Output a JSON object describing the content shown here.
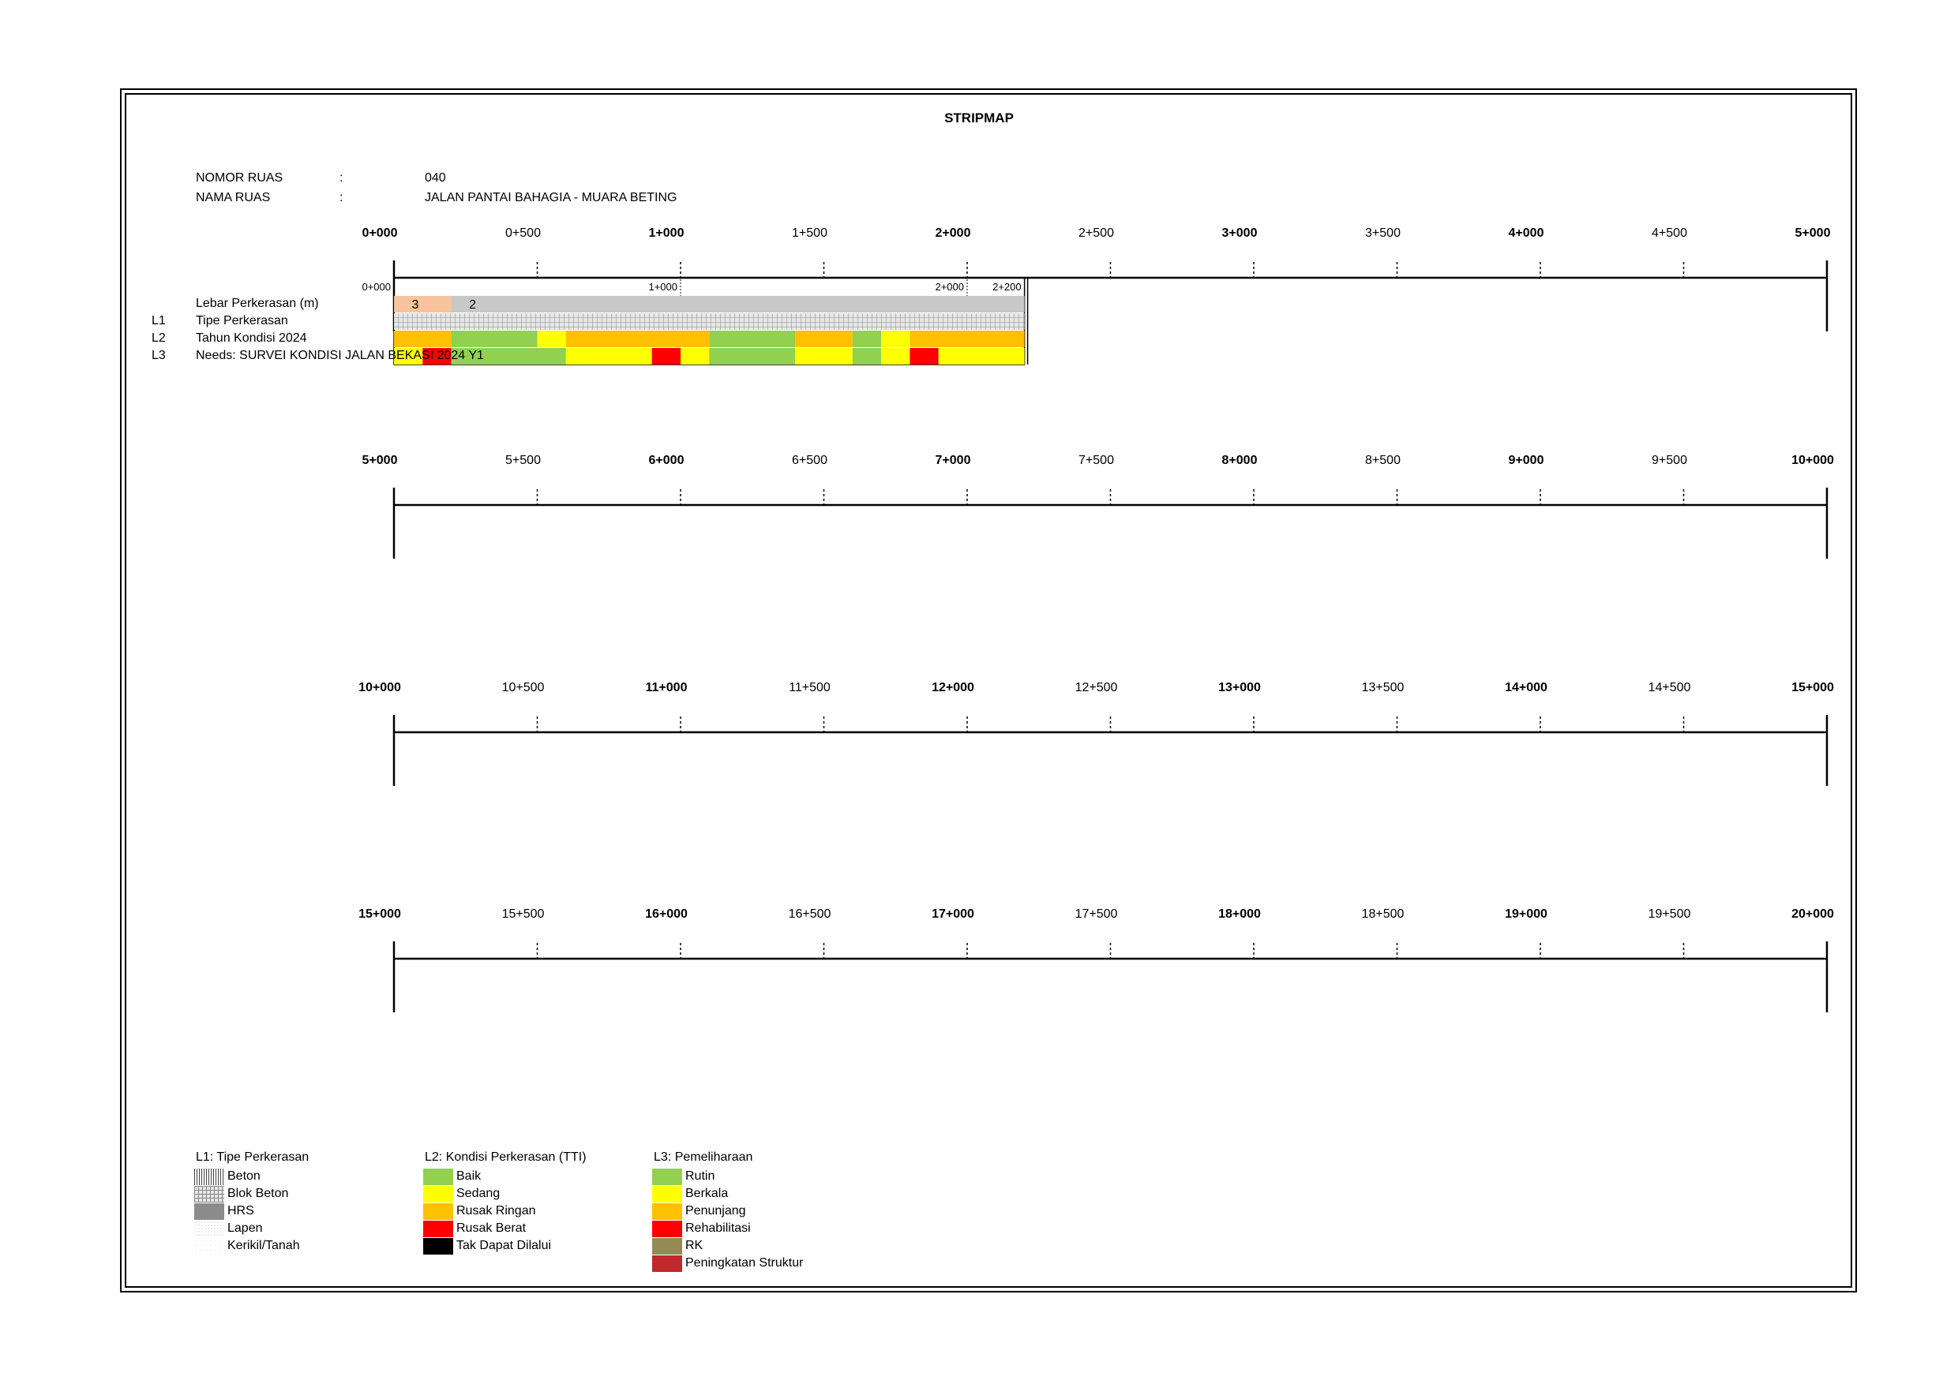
{
  "title": "STRIPMAP",
  "header": {
    "nomor_label": "NOMOR RUAS",
    "nama_label": "NAMA RUAS",
    "colon": ":",
    "nomor_value": "040",
    "nama_value": "JALAN PANTAI BAHAGIA - MUARA BETING"
  },
  "scales": [
    {
      "ticks": [
        "0+000",
        "0+500",
        "1+000",
        "1+500",
        "2+000",
        "2+500",
        "3+000",
        "3+500",
        "4+000",
        "4+500",
        "5+000"
      ]
    },
    {
      "ticks": [
        "5+000",
        "5+500",
        "6+000",
        "6+500",
        "7+000",
        "7+500",
        "8+000",
        "8+500",
        "9+000",
        "9+500",
        "10+000"
      ]
    },
    {
      "ticks": [
        "10+000",
        "10+500",
        "11+000",
        "11+500",
        "12+000",
        "12+500",
        "13+000",
        "13+500",
        "14+000",
        "14+500",
        "15+000"
      ]
    },
    {
      "ticks": [
        "15+000",
        "15+500",
        "16+000",
        "16+500",
        "17+000",
        "17+500",
        "18+000",
        "18+500",
        "19+000",
        "19+500",
        "20+000"
      ]
    }
  ],
  "section_marks": [
    "0+000",
    "1+000",
    "2+000",
    "2+200"
  ],
  "section_end_km": 2.2,
  "rows": {
    "width_label": "Lebar Perkerasan (m)",
    "l1_code": "L1",
    "l1_label": "Tipe Perkerasan",
    "l2_code": "L2",
    "l2_label": "Tahun Kondisi 2024",
    "l3_code": "L3",
    "l3_label": "Needs: SURVEI KONDISI JALAN BEKASI 2024 Y1"
  },
  "width_segments": [
    {
      "from": 0.0,
      "to": 0.2,
      "value": "3",
      "color": "#f8c39c"
    },
    {
      "from": 0.2,
      "to": 2.2,
      "value": "2",
      "color": "#c8c8c8"
    }
  ],
  "l1_segments": [
    {
      "from": 0.0,
      "to": 2.2,
      "type": "Blok Beton"
    }
  ],
  "l2_segments": [
    {
      "from": 0.0,
      "to": 0.2,
      "color": "#ffc000"
    },
    {
      "from": 0.2,
      "to": 0.5,
      "color": "#92d050"
    },
    {
      "from": 0.5,
      "to": 0.6,
      "color": "#ffff00"
    },
    {
      "from": 0.6,
      "to": 1.1,
      "color": "#ffc000"
    },
    {
      "from": 1.1,
      "to": 1.4,
      "color": "#92d050"
    },
    {
      "from": 1.4,
      "to": 1.6,
      "color": "#ffc000"
    },
    {
      "from": 1.6,
      "to": 1.7,
      "color": "#92d050"
    },
    {
      "from": 1.7,
      "to": 1.8,
      "color": "#ffff00"
    },
    {
      "from": 1.8,
      "to": 2.2,
      "color": "#ffc000"
    }
  ],
  "l3_segments": [
    {
      "from": 0.0,
      "to": 0.1,
      "color": "#ffff00"
    },
    {
      "from": 0.1,
      "to": 0.2,
      "color": "#ff0000"
    },
    {
      "from": 0.2,
      "to": 0.6,
      "color": "#92d050"
    },
    {
      "from": 0.6,
      "to": 0.9,
      "color": "#ffff00"
    },
    {
      "from": 0.9,
      "to": 1.0,
      "color": "#ff0000"
    },
    {
      "from": 1.0,
      "to": 1.1,
      "color": "#ffff00"
    },
    {
      "from": 1.1,
      "to": 1.4,
      "color": "#92d050"
    },
    {
      "from": 1.4,
      "to": 1.6,
      "color": "#ffff00"
    },
    {
      "from": 1.6,
      "to": 1.7,
      "color": "#92d050"
    },
    {
      "from": 1.7,
      "to": 1.8,
      "color": "#ffff00"
    },
    {
      "from": 1.8,
      "to": 1.9,
      "color": "#ff0000"
    },
    {
      "from": 1.9,
      "to": 2.2,
      "color": "#ffff00"
    }
  ],
  "legend": {
    "l1": {
      "title": "L1: Tipe Perkerasan",
      "items": [
        {
          "label": "Beton",
          "pattern": "vertical-lines"
        },
        {
          "label": "Blok Beton",
          "pattern": "grid"
        },
        {
          "label": "HRS",
          "pattern": "solid-gray"
        },
        {
          "label": "Lapen",
          "pattern": "dots-fine"
        },
        {
          "label": "Kerikil/Tanah",
          "pattern": "dots-sparse"
        }
      ]
    },
    "l2": {
      "title": "L2: Kondisi Perkerasan (TTI)",
      "items": [
        {
          "label": "Baik",
          "color": "#92d050"
        },
        {
          "label": "Sedang",
          "color": "#ffff00"
        },
        {
          "label": "Rusak Ringan",
          "color": "#ffc000"
        },
        {
          "label": "Rusak Berat",
          "color": "#ff0000"
        },
        {
          "label": "Tak Dapat Dilalui",
          "color": "#000000"
        }
      ]
    },
    "l3": {
      "title": "L3: Pemeliharaan",
      "items": [
        {
          "label": "Rutin",
          "color": "#92d050"
        },
        {
          "label": "Berkala",
          "color": "#ffff00"
        },
        {
          "label": "Penunjang",
          "color": "#ffc000"
        },
        {
          "label": "Rehabilitasi",
          "color": "#ff0000"
        },
        {
          "label": "RK",
          "color": "#948a54"
        },
        {
          "label": "Peningkatan Struktur",
          "color": "#c0282d"
        }
      ]
    }
  }
}
